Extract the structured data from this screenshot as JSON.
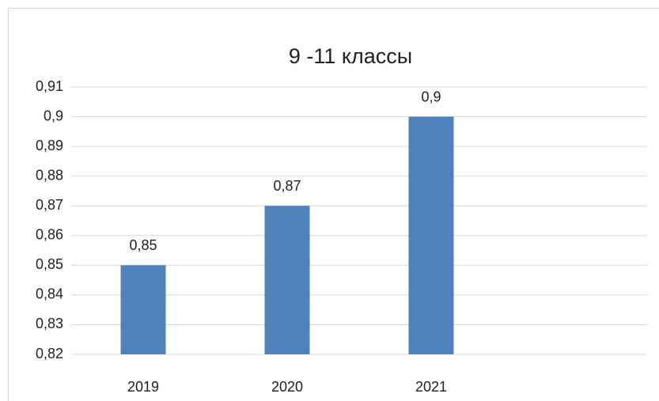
{
  "chart_data": {
    "type": "bar",
    "title": "9 -11 классы",
    "categories": [
      "2019",
      "2020",
      "2021",
      null
    ],
    "values": [
      0.85,
      0.87,
      0.9,
      null
    ],
    "value_labels": [
      "0,85",
      "0,87",
      "0,9",
      null
    ],
    "color": "#4f81bd",
    "ylim": [
      0.82,
      0.91
    ],
    "yticks": [
      {
        "value": 0.82,
        "label": "0,82"
      },
      {
        "value": 0.83,
        "label": "0,83"
      },
      {
        "value": 0.84,
        "label": "0,84"
      },
      {
        "value": 0.85,
        "label": "0,85"
      },
      {
        "value": 0.86,
        "label": "0,86"
      },
      {
        "value": 0.87,
        "label": "0,87"
      },
      {
        "value": 0.88,
        "label": "0,88"
      },
      {
        "value": 0.89,
        "label": "0,89"
      },
      {
        "value": 0.9,
        "label": "0,9"
      },
      {
        "value": 0.91,
        "label": "0,91"
      }
    ],
    "grid": true
  }
}
